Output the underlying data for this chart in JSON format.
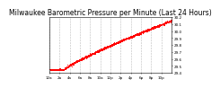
{
  "title": "Milwaukee Barometric Pressure per Minute (Last 24 Hours)",
  "title_fontsize": 5.5,
  "background_color": "#ffffff",
  "plot_bg_color": "#ffffff",
  "grid_color": "#aaaaaa",
  "line_color": "#ff0000",
  "y_min": 29.4,
  "y_max": 30.2,
  "num_points": 1440,
  "x_tick_fontsize": 3.0,
  "y_tick_fontsize": 3.0,
  "marker_size": 0.5,
  "y_ticks": [
    29.4,
    29.5,
    29.6,
    29.7,
    29.8,
    29.9,
    30.0,
    30.1,
    30.2
  ],
  "y_tick_labels": [
    "29.4",
    "29.5",
    "29.6",
    "29.7",
    "29.8",
    "29.9",
    "30.0",
    "30.1",
    "30.2"
  ]
}
